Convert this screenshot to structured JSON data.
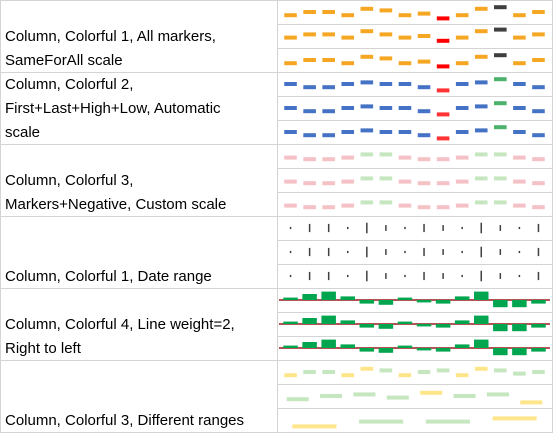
{
  "rows": [
    {
      "label_lines": [
        "Column, Colorful 1, All markers,",
        "SameForAll scale"
      ],
      "mode": "float",
      "color": "#f5a623",
      "high_color": "#404040",
      "low_color": "#ff0000",
      "ylim": [
        0,
        10
      ],
      "sparklines": [
        {
          "values": [
            3,
            5,
            5,
            3,
            7,
            6,
            3,
            4,
            1,
            3,
            7,
            8,
            3,
            5
          ]
        },
        {
          "values": [
            4,
            6,
            6,
            4,
            8,
            6,
            4,
            5,
            2,
            4,
            8,
            9,
            4,
            6
          ]
        },
        {
          "values": [
            3,
            5,
            5,
            3,
            7,
            6,
            3,
            4,
            1,
            3,
            7,
            8,
            3,
            5
          ]
        }
      ]
    },
    {
      "label_lines": [
        "Column, Colorful 2,",
        "First+Last+High+Low, Automatic",
        "scale"
      ],
      "mode": "float",
      "color": "#4472c4",
      "high_color": "#4cb26b",
      "low_color": "#ff3333",
      "ylim": [
        0,
        10
      ],
      "sparklines": [
        {
          "values": [
            5,
            3,
            3,
            5,
            6,
            5,
            5,
            3,
            1,
            5,
            6,
            8,
            5,
            3
          ]
        },
        {
          "values": [
            5,
            3,
            3,
            5,
            6,
            5,
            5,
            3,
            1,
            5,
            6,
            8,
            5,
            3
          ]
        },
        {
          "values": [
            5,
            3,
            3,
            5,
            6,
            5,
            5,
            3,
            1,
            5,
            6,
            8,
            5,
            3
          ]
        }
      ]
    },
    {
      "label_lines": [
        "Column, Colorful 3,",
        "Markers+Negative, Custom scale"
      ],
      "mode": "float",
      "color": "#f4c2c6",
      "high_color": "#c6e6c0",
      "low_color": "#f4c2c6",
      "ylim": [
        0,
        10
      ],
      "sparklines": [
        {
          "values": [
            4,
            3,
            3,
            4,
            6,
            6,
            4,
            3,
            3,
            4,
            6,
            6,
            4,
            3
          ]
        },
        {
          "values": [
            4,
            3,
            3,
            4,
            6,
            6,
            4,
            3,
            3,
            4,
            6,
            6,
            4,
            3
          ]
        },
        {
          "values": [
            4,
            3,
            3,
            4,
            6,
            6,
            4,
            3,
            3,
            4,
            6,
            6,
            4,
            3
          ]
        }
      ]
    },
    {
      "label_lines": [
        "Column, Colorful 1, Date range"
      ],
      "mode": "tick",
      "color": "#404040",
      "high_color": "#404040",
      "low_color": "#404040",
      "ylim": [
        0,
        10
      ],
      "sparklines": [
        {
          "values": [
            1,
            6,
            6,
            1,
            8,
            4,
            1,
            6,
            4,
            1,
            8,
            4,
            1,
            6
          ]
        },
        {
          "values": [
            1,
            6,
            6,
            1,
            8,
            4,
            1,
            6,
            4,
            1,
            8,
            4,
            1,
            6
          ]
        },
        {
          "values": [
            1,
            6,
            6,
            1,
            8,
            4,
            1,
            6,
            4,
            1,
            8,
            4,
            1,
            6
          ]
        }
      ]
    },
    {
      "label_lines": [
        "Column, Colorful 4, Line weight=2,",
        "Right to left"
      ],
      "mode": "axis",
      "color": "#00a550",
      "high_color": "#00a550",
      "low_color": "#00a550",
      "axis_color": "#9b1c1c",
      "ylim": [
        -10,
        10
      ],
      "sparklines": [
        {
          "values": [
            2,
            5,
            7,
            3,
            -3,
            -4,
            2,
            -2,
            -3,
            3,
            7,
            -6,
            -6,
            -3
          ]
        },
        {
          "values": [
            2,
            5,
            7,
            3,
            -3,
            -4,
            2,
            -2,
            -3,
            3,
            7,
            -6,
            -6,
            -3
          ]
        },
        {
          "values": [
            2,
            5,
            7,
            3,
            -3,
            -4,
            2,
            -2,
            -3,
            3,
            7,
            -6,
            -6,
            -3
          ]
        }
      ]
    },
    {
      "label_lines": [
        "Column, Colorful 3, Different ranges"
      ],
      "mode": "float",
      "color": "#c6e6c0",
      "high_color": "#ffe58a",
      "low_color": "#ffe58a",
      "ylim": [
        0,
        10
      ],
      "sparklines": [
        {
          "values": [
            3,
            5,
            5,
            3,
            7,
            6,
            3,
            5,
            6,
            3,
            7,
            6,
            4,
            5
          ]
        },
        {
          "values": [
            3,
            5,
            6,
            4,
            7,
            5,
            6,
            1
          ]
        },
        {
          "values": [
            1,
            4,
            4,
            6
          ]
        }
      ]
    }
  ]
}
